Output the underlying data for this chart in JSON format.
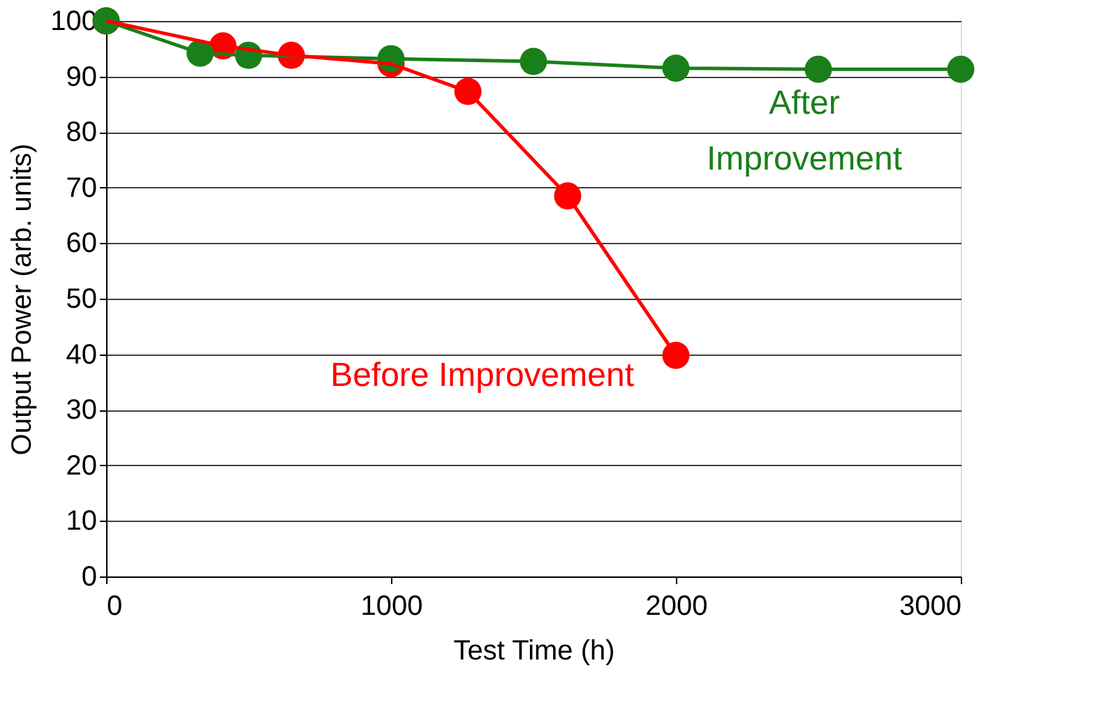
{
  "chart_data": {
    "type": "line",
    "xlabel": "Test Time (h)",
    "ylabel": "Output Power (arb. units)",
    "xlim": [
      0,
      3000
    ],
    "xticks": [
      0,
      {
        "value": 1000,
        "label": "1000"
      },
      {
        "value": 2000,
        "label": "2000"
      },
      {
        "value": 3000,
        "label": "3000"
      }
    ],
    "ylim": [
      0,
      100
    ],
    "yticks": [
      0,
      10,
      20,
      30,
      40,
      50,
      60,
      70,
      80,
      90,
      100
    ],
    "grid": "y",
    "marker": "circle",
    "line_style": "solid",
    "legend": false,
    "series": [
      {
        "name": "Before Improvement",
        "color": "#ff0000",
        "x": [
          0,
          410,
          650,
          1000,
          1270,
          1620,
          2000
        ],
        "values": [
          100,
          95.5,
          93.8,
          92.3,
          87.3,
          68.5,
          39.8
        ]
      },
      {
        "name": "After\nImprovement",
        "color": "#1a7f1a",
        "x": [
          0,
          330,
          500,
          1000,
          1500,
          2000,
          2500,
          3000
        ],
        "values": [
          100,
          94.2,
          93.8,
          93.2,
          92.7,
          91.5,
          91.3,
          91.3
        ]
      }
    ]
  }
}
